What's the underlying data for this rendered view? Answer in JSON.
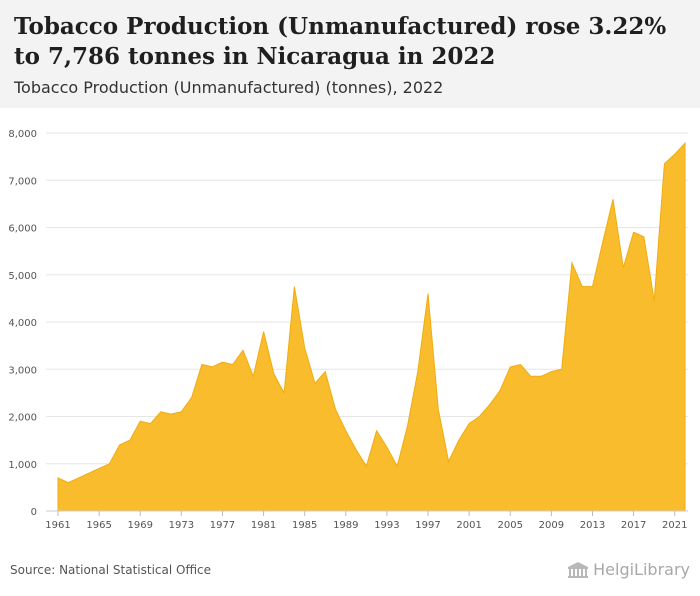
{
  "header": {
    "title": "Tobacco Production (Unmanufactured) rose 3.22% to 7,786 tonnes in Nicaragua in 2022",
    "subtitle": "Tobacco Production (Unmanufactured) (tonnes), 2022"
  },
  "footer": {
    "source": "Source: National Statistical Office",
    "brand": "HelgiLibrary"
  },
  "colors": {
    "area_fill": "#f9bc2c",
    "area_stroke": "#f0ac10",
    "grid": "#e6e6e6",
    "axis_text": "#555555",
    "header_bg": "#f3f3f3"
  },
  "chart_data": {
    "type": "area",
    "title": "",
    "xlabel": "",
    "ylabel": "",
    "ylim": [
      0,
      8000
    ],
    "yticks": [
      0,
      1000,
      2000,
      3000,
      4000,
      5000,
      6000,
      7000,
      8000
    ],
    "ytick_labels": [
      "0",
      "1,000",
      "2,000",
      "3,000",
      "4,000",
      "5,000",
      "6,000",
      "7,000",
      "8,000"
    ],
    "xticks": [
      1961,
      1965,
      1969,
      1973,
      1977,
      1981,
      1985,
      1989,
      1993,
      1997,
      2001,
      2005,
      2009,
      2013,
      2017,
      2021
    ],
    "grid": true,
    "x": [
      1961,
      1962,
      1963,
      1964,
      1965,
      1966,
      1967,
      1968,
      1969,
      1970,
      1971,
      1972,
      1973,
      1974,
      1975,
      1976,
      1977,
      1978,
      1979,
      1980,
      1981,
      1982,
      1983,
      1984,
      1985,
      1986,
      1987,
      1988,
      1989,
      1990,
      1991,
      1992,
      1993,
      1994,
      1995,
      1996,
      1997,
      1998,
      1999,
      2000,
      2001,
      2002,
      2003,
      2004,
      2005,
      2006,
      2007,
      2008,
      2009,
      2010,
      2011,
      2012,
      2013,
      2014,
      2015,
      2016,
      2017,
      2018,
      2019,
      2020,
      2021,
      2022
    ],
    "values": [
      700,
      600,
      700,
      800,
      900,
      1000,
      1400,
      1500,
      1900,
      1850,
      2100,
      2050,
      2100,
      2400,
      3100,
      3050,
      3150,
      3100,
      3400,
      2850,
      3800,
      2900,
      2500,
      4750,
      3450,
      2700,
      2950,
      2150,
      1700,
      1300,
      950,
      1700,
      1350,
      950,
      1800,
      2950,
      4600,
      2150,
      1050,
      1500,
      1850,
      2000,
      2250,
      2550,
      3050,
      3100,
      2850,
      2850,
      2950,
      3000,
      5250,
      4750,
      4750,
      5700,
      6600,
      5150,
      5900,
      5800,
      4450,
      7350,
      7550,
      7786
    ]
  }
}
